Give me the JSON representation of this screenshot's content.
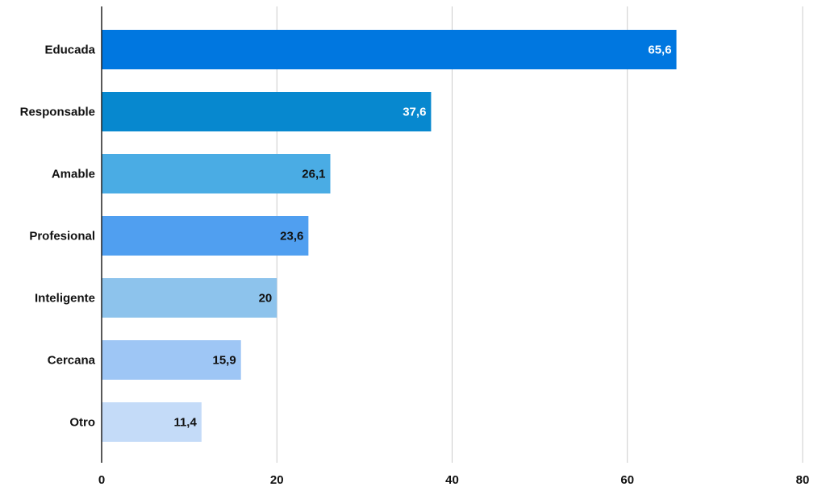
{
  "chart_data": {
    "type": "bar",
    "orientation": "horizontal",
    "title": "",
    "xlabel": "",
    "ylabel": "",
    "categories": [
      "Educada",
      "Responsable",
      "Amable",
      "Profesional",
      "Inteligente",
      "Cercana",
      "Otro"
    ],
    "values": [
      65.6,
      37.6,
      26.1,
      23.6,
      20,
      15.9,
      11.4
    ],
    "value_labels": [
      "65,6",
      "37,6",
      "26,1",
      "23,6",
      "20",
      "15,9",
      "11,4"
    ],
    "bar_colors": [
      "#0077e0",
      "#0788cf",
      "#4aace4",
      "#509ff0",
      "#8dc3ec",
      "#9ec6f5",
      "#c4dbf8"
    ],
    "value_label_colors": [
      "#ffffff",
      "#ffffff",
      "#111111",
      "#111111",
      "#111111",
      "#111111",
      "#111111"
    ],
    "xlim": [
      0,
      80
    ],
    "xticks": [
      0,
      20,
      40,
      60,
      80
    ],
    "xtick_labels": [
      "0",
      "20",
      "40",
      "60",
      "80"
    ],
    "grid": "vertical",
    "legend": "none"
  }
}
